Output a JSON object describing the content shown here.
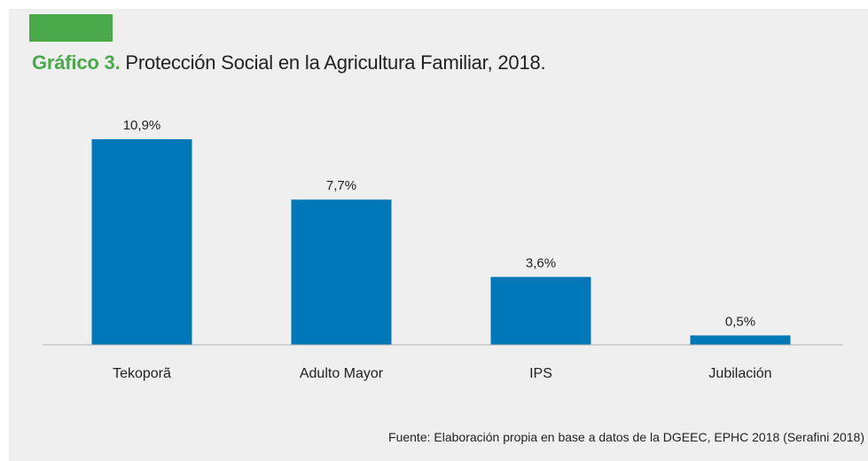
{
  "figure": {
    "label": "Gráfico 3.",
    "title": "Protección Social en la Agricultura Familiar, 2018.",
    "source": "Fuente: Elaboración propia en base a datos de la DGEEC, EPHC 2018 (Serafini 2018)",
    "accent_color": "#4aa94a"
  },
  "chart_data": {
    "type": "bar",
    "categories": [
      "Tekoporã",
      "Adulto Mayor",
      "IPS",
      "Jubilación"
    ],
    "values": [
      10.9,
      7.7,
      3.6,
      0.5
    ],
    "value_labels": [
      "10,9%",
      "7,7%",
      "3,6%",
      "0,5%"
    ],
    "unit": "%",
    "bar_color": "#0077b6",
    "ylim": [
      0,
      12.5
    ],
    "grid": false,
    "legend": "none"
  }
}
